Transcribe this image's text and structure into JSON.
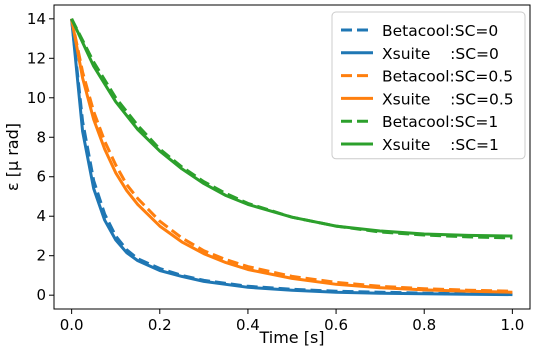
{
  "chart_data": {
    "type": "line",
    "title": "",
    "xlabel": "Time [s]",
    "ylabel": "ε [μ rad]",
    "xlim": [
      -0.04,
      1.04
    ],
    "ylim": [
      -0.7,
      14.7
    ],
    "xticks": [
      0.0,
      0.2,
      0.4,
      0.6,
      0.8,
      1.0
    ],
    "xtick_labels": [
      "0.0",
      "0.2",
      "0.4",
      "0.6",
      "0.8",
      "1.0"
    ],
    "yticks": [
      0,
      2,
      4,
      6,
      8,
      10,
      12,
      14
    ],
    "ytick_labels": [
      "0",
      "2",
      "4",
      "6",
      "8",
      "10",
      "12",
      "14"
    ],
    "grid": false,
    "legend_position": "top-right",
    "series": [
      {
        "name": "Betacool:SC=0",
        "style": "dashed",
        "color": "#1f77b4",
        "x": [
          0,
          0.025,
          0.05,
          0.075,
          0.1,
          0.125,
          0.15,
          0.2,
          0.25,
          0.3,
          0.4,
          0.5,
          0.6,
          0.7,
          0.8,
          0.9,
          1.0
        ],
        "y": [
          14.0,
          8.8,
          5.8,
          4.1,
          3.0,
          2.3,
          1.85,
          1.35,
          1.0,
          0.75,
          0.45,
          0.3,
          0.2,
          0.15,
          0.1,
          0.08,
          0.06
        ]
      },
      {
        "name": "Xsuite    :SC=0",
        "style": "solid",
        "color": "#1f77b4",
        "x": [
          0,
          0.025,
          0.05,
          0.075,
          0.1,
          0.125,
          0.15,
          0.2,
          0.25,
          0.3,
          0.4,
          0.5,
          0.6,
          0.7,
          0.8,
          0.9,
          1.0
        ],
        "y": [
          14.0,
          8.3,
          5.4,
          3.8,
          2.8,
          2.15,
          1.75,
          1.25,
          0.95,
          0.7,
          0.4,
          0.25,
          0.15,
          0.1,
          0.07,
          0.05,
          0.03
        ]
      },
      {
        "name": "Betacool:SC=0.5",
        "style": "dashed",
        "color": "#ff7f0e",
        "x": [
          0,
          0.025,
          0.05,
          0.075,
          0.1,
          0.125,
          0.15,
          0.2,
          0.25,
          0.3,
          0.35,
          0.4,
          0.5,
          0.6,
          0.7,
          0.8,
          0.9,
          1.0
        ],
        "y": [
          14.0,
          11.3,
          9.3,
          7.8,
          6.6,
          5.6,
          4.9,
          3.75,
          2.9,
          2.25,
          1.8,
          1.45,
          0.95,
          0.65,
          0.45,
          0.33,
          0.25,
          0.2
        ]
      },
      {
        "name": "Xsuite    :SC=0.5",
        "style": "solid",
        "color": "#ff7f0e",
        "x": [
          0,
          0.025,
          0.05,
          0.075,
          0.1,
          0.125,
          0.15,
          0.2,
          0.25,
          0.3,
          0.35,
          0.4,
          0.5,
          0.6,
          0.7,
          0.8,
          0.9,
          1.0
        ],
        "y": [
          14.0,
          11.0,
          8.9,
          7.4,
          6.2,
          5.3,
          4.6,
          3.5,
          2.7,
          2.1,
          1.65,
          1.3,
          0.85,
          0.55,
          0.38,
          0.27,
          0.2,
          0.15
        ]
      },
      {
        "name": "Betacool:SC=1",
        "style": "dashed",
        "color": "#2ca02c",
        "x": [
          0,
          0.05,
          0.1,
          0.15,
          0.2,
          0.25,
          0.3,
          0.35,
          0.4,
          0.5,
          0.6,
          0.7,
          0.8,
          0.9,
          1.0
        ],
        "y": [
          14.0,
          11.8,
          10.0,
          8.6,
          7.4,
          6.5,
          5.75,
          5.15,
          4.65,
          3.95,
          3.5,
          3.2,
          3.05,
          2.95,
          2.9
        ]
      },
      {
        "name": "Xsuite    :SC=1",
        "style": "solid",
        "color": "#2ca02c",
        "x": [
          0,
          0.05,
          0.1,
          0.15,
          0.2,
          0.25,
          0.3,
          0.35,
          0.4,
          0.5,
          0.6,
          0.7,
          0.8,
          0.9,
          1.0
        ],
        "y": [
          14.0,
          11.6,
          9.8,
          8.4,
          7.3,
          6.4,
          5.65,
          5.05,
          4.6,
          3.95,
          3.5,
          3.25,
          3.1,
          3.03,
          3.0
        ]
      }
    ]
  }
}
